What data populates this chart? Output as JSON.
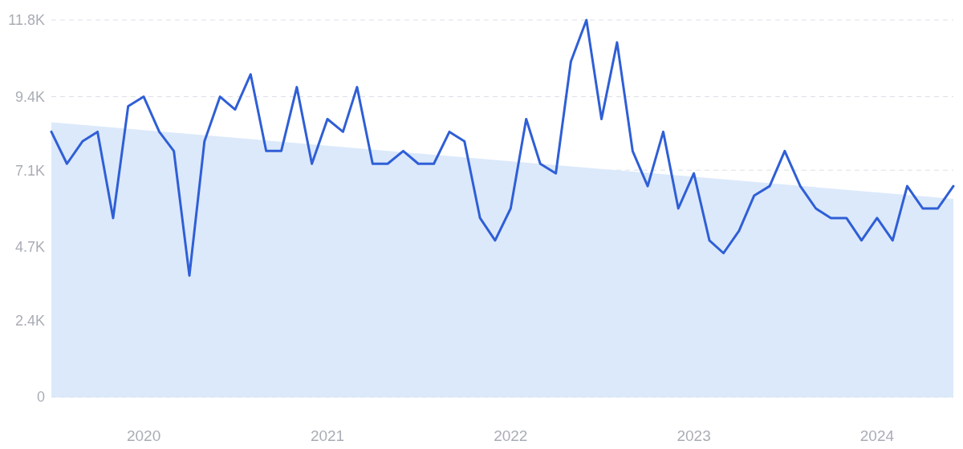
{
  "chart_data": {
    "type": "line",
    "x": [
      "2019-07",
      "2019-08",
      "2019-09",
      "2019-10",
      "2019-11",
      "2019-12",
      "2020-01",
      "2020-02",
      "2020-03",
      "2020-04",
      "2020-05",
      "2020-06",
      "2020-07",
      "2020-08",
      "2020-09",
      "2020-10",
      "2020-11",
      "2020-12",
      "2021-01",
      "2021-02",
      "2021-03",
      "2021-04",
      "2021-05",
      "2021-06",
      "2021-07",
      "2021-08",
      "2021-09",
      "2021-10",
      "2021-11",
      "2021-12",
      "2022-01",
      "2022-02",
      "2022-03",
      "2022-04",
      "2022-05",
      "2022-06",
      "2022-07",
      "2022-08",
      "2022-09",
      "2022-10",
      "2022-11",
      "2022-12",
      "2023-01",
      "2023-02",
      "2023-03",
      "2023-04",
      "2023-05",
      "2023-06",
      "2023-07",
      "2023-08",
      "2023-09",
      "2023-10",
      "2023-11",
      "2023-12",
      "2024-01",
      "2024-02",
      "2024-03",
      "2024-04",
      "2024-05",
      "2024-06"
    ],
    "series": [
      {
        "type": "area",
        "color": "#dce9fb",
        "x": [
          "2019-07",
          "2024-06"
        ],
        "values": [
          8600,
          6200
        ]
      },
      {
        "color": "#2f5fd6",
        "values": [
          8300,
          7300,
          8000,
          8300,
          5600,
          9100,
          9400,
          8300,
          7700,
          3800,
          8000,
          9400,
          9000,
          10100,
          7700,
          7700,
          9700,
          7300,
          8700,
          8300,
          9700,
          7300,
          7300,
          7700,
          7300,
          7300,
          8300,
          8000,
          5600,
          4900,
          5900,
          8700,
          7300,
          7000,
          10500,
          11800,
          8700,
          11100,
          7700,
          6600,
          8300,
          5900,
          7000,
          4900,
          4500,
          5200,
          6300,
          6600,
          7700,
          6600,
          5900,
          5600,
          5600,
          4900,
          5600,
          4900,
          6600,
          5900,
          5900,
          6600
        ]
      }
    ],
    "xlim": [
      "2019-07",
      "2024-06"
    ],
    "xticks": [
      "2020",
      "2021",
      "2022",
      "2023",
      "2024"
    ],
    "ylim": [
      0,
      11800
    ],
    "yticks": [
      0,
      {
        "value": 2400,
        "label": "2.4K"
      },
      {
        "value": 4700,
        "label": "4.7K"
      },
      {
        "value": 7100,
        "label": "7.1K"
      },
      {
        "value": 9400,
        "label": "9.4K"
      },
      {
        "value": 11800,
        "label": "11.8K"
      }
    ],
    "grid": "y",
    "marker": "none",
    "line_style": "solid"
  }
}
